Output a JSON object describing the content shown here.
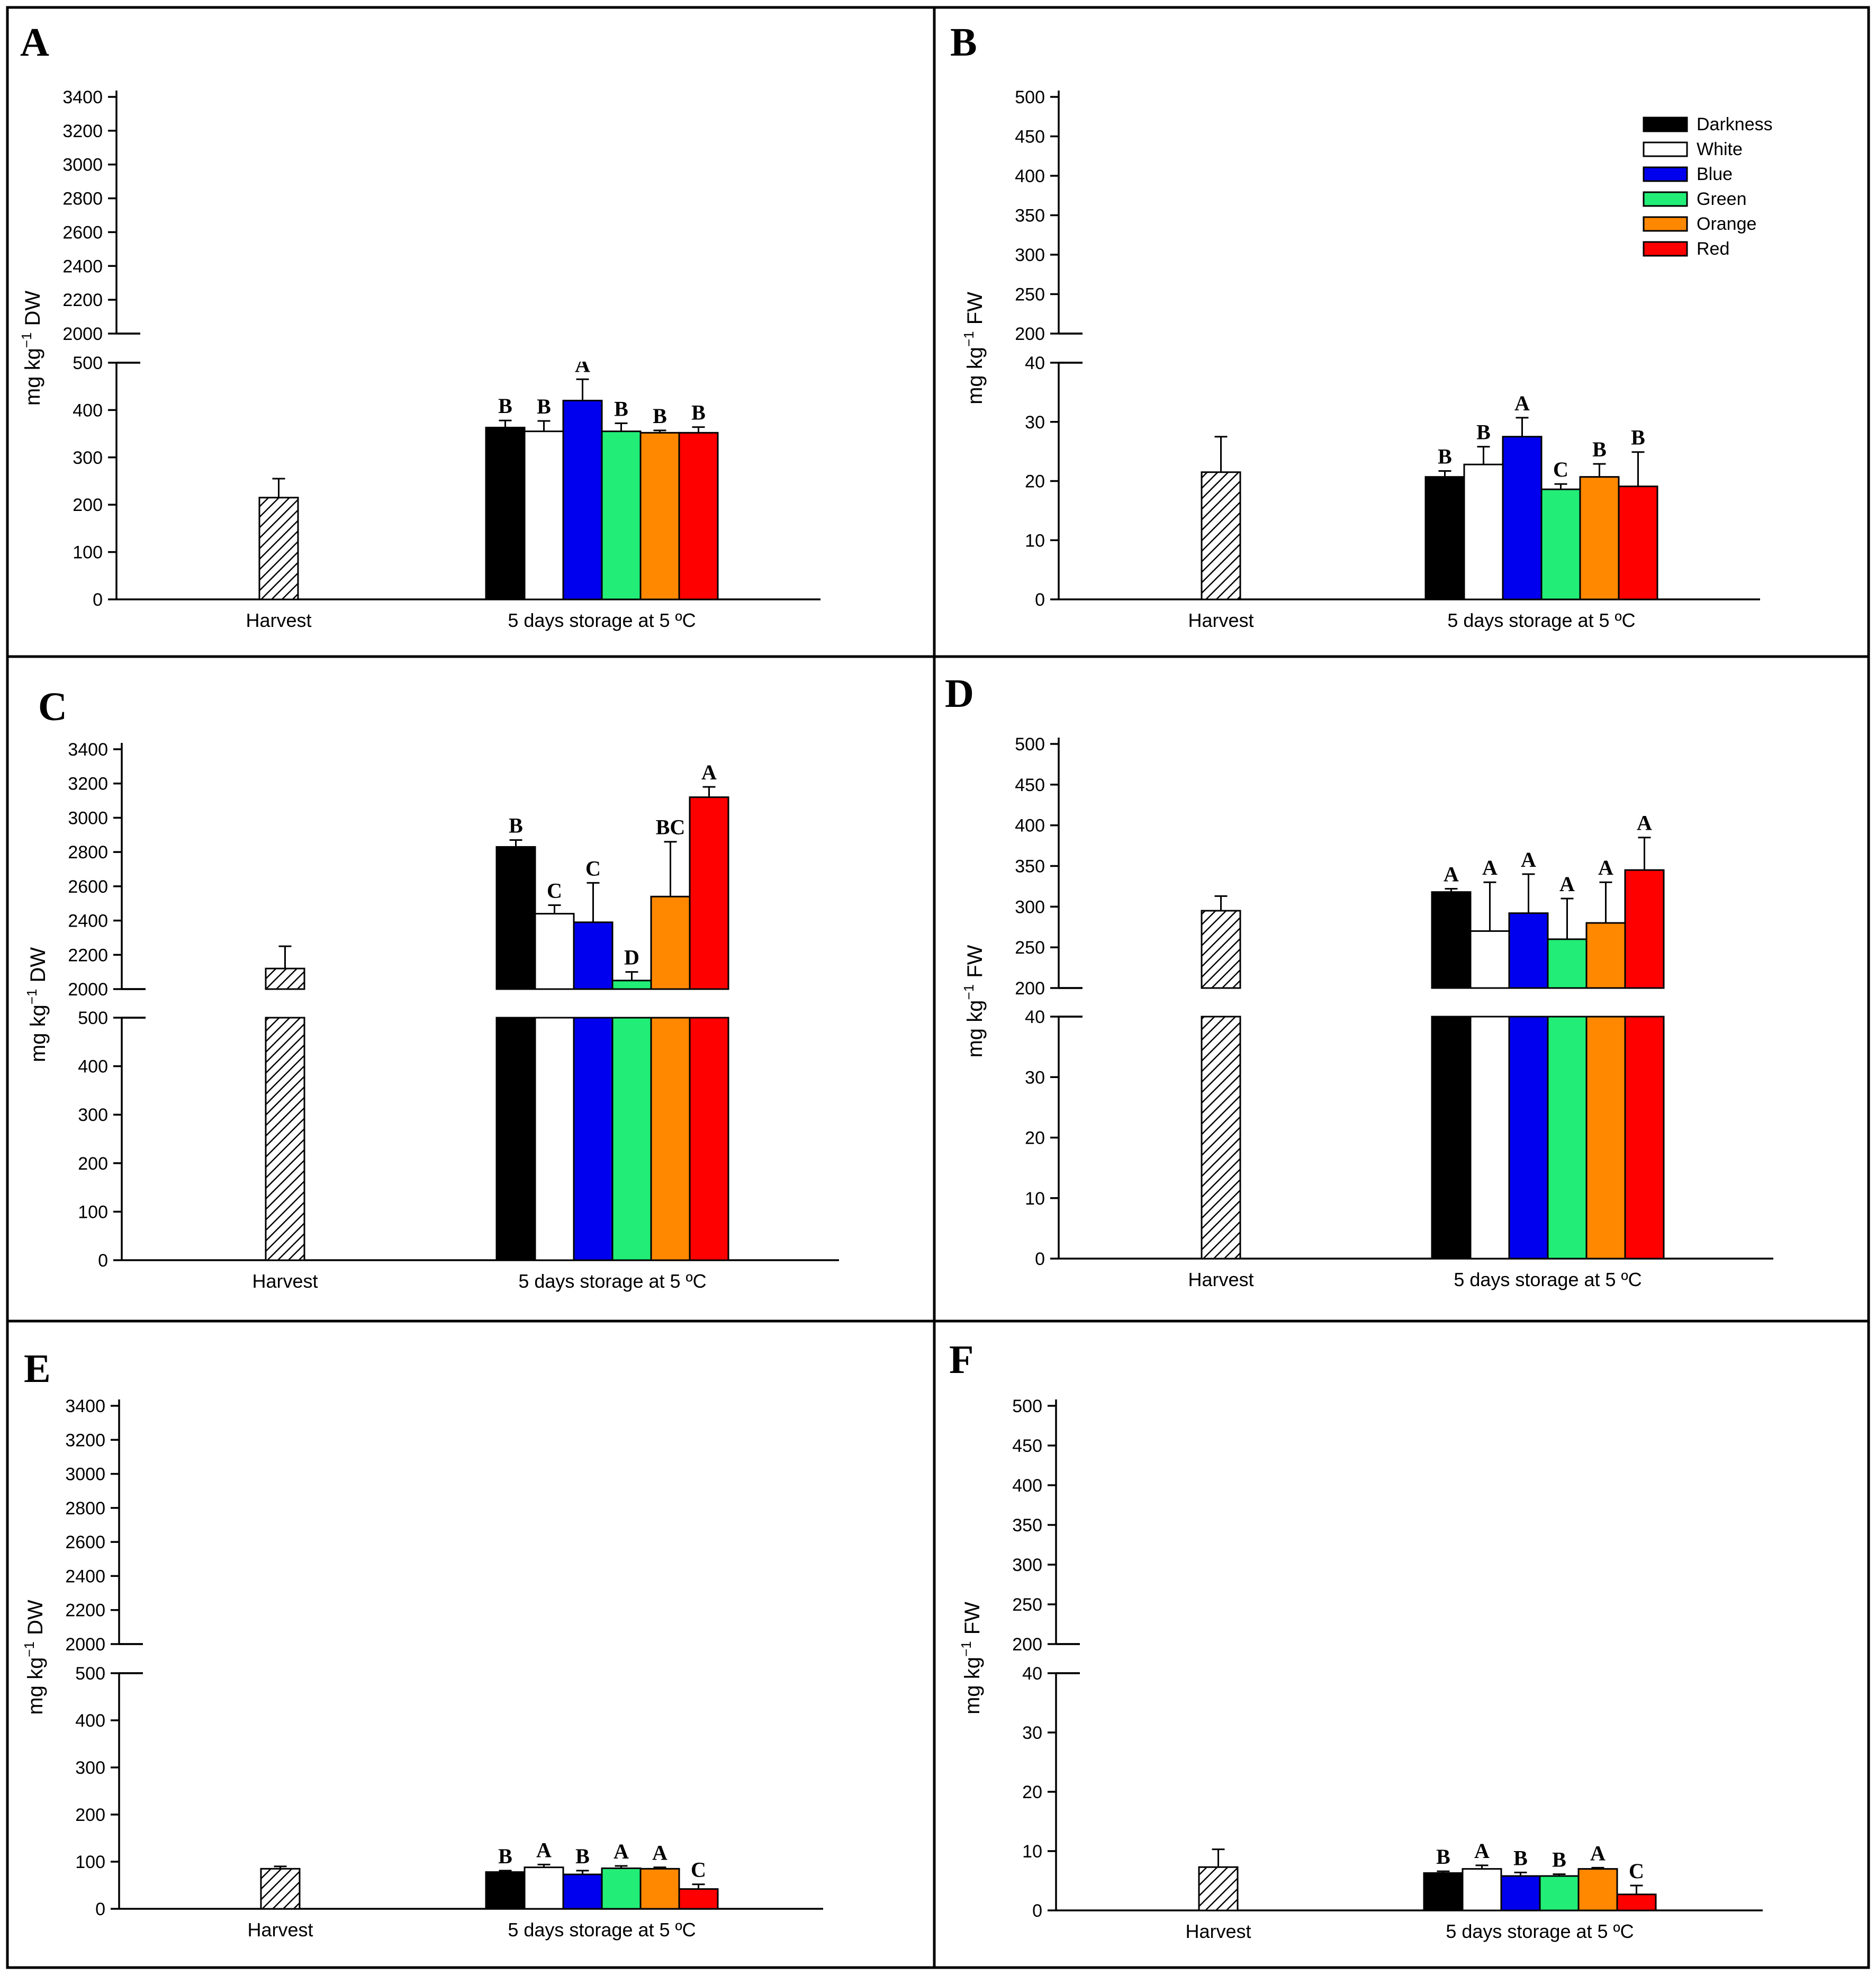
{
  "colors": {
    "Darkness": "#000000",
    "White": "#ffffff",
    "Blue": "#0000ee",
    "Green": "#22ee77",
    "Orange": "#ff8800",
    "Red": "#ff0000",
    "Harvest": "hatched-gray"
  },
  "legend": {
    "entries": [
      "Darkness",
      "White",
      "Blue",
      "Green",
      "Orange",
      "Red"
    ]
  },
  "chart_data": [
    {
      "type": "bar",
      "panel": "A",
      "ylabel_main": "mg kg",
      "ylabel_sup": "−1",
      "ylabel_unit": "DW",
      "categories": [
        "Harvest",
        "5 days storage at 5 ºC"
      ],
      "y_axis": {
        "lower_range": [
          0,
          500
        ],
        "lower_ticks": [
          0,
          100,
          200,
          300,
          400,
          500
        ],
        "upper_range": [
          2000,
          3500
        ],
        "upper_ticks": [
          2000,
          2200,
          2400,
          2600,
          2800,
          3000,
          3200,
          3400
        ]
      },
      "harvest": {
        "value": 215,
        "error": 40
      },
      "series": [
        {
          "name": "Darkness",
          "value": 363,
          "error": 15,
          "letter": "B"
        },
        {
          "name": "White",
          "value": 355,
          "error": 22,
          "letter": "B"
        },
        {
          "name": "Blue",
          "value": 420,
          "error": 45,
          "letter": "A"
        },
        {
          "name": "Green",
          "value": 355,
          "error": 17,
          "letter": "B"
        },
        {
          "name": "Orange",
          "value": 352,
          "error": 5,
          "letter": "B"
        },
        {
          "name": "Red",
          "value": 352,
          "error": 12,
          "letter": "B"
        }
      ]
    },
    {
      "type": "bar",
      "panel": "B",
      "ylabel_main": "mg kg",
      "ylabel_sup": "−1",
      "ylabel_unit": "FW",
      "categories": [
        "Harvest",
        "5 days storage at 5 ºC"
      ],
      "y_axis": {
        "lower_range": [
          0,
          40
        ],
        "lower_ticks": [
          0,
          10,
          20,
          30,
          40
        ],
        "upper_range": [
          200,
          500
        ],
        "upper_ticks": [
          200,
          250,
          300,
          350,
          400,
          450,
          500
        ]
      },
      "harvest": {
        "value": 21.5,
        "error": 6
      },
      "series": [
        {
          "name": "Darkness",
          "value": 20.7,
          "error": 1,
          "letter": "B"
        },
        {
          "name": "White",
          "value": 22.8,
          "error": 3,
          "letter": "B"
        },
        {
          "name": "Blue",
          "value": 27.5,
          "error": 3.2,
          "letter": "A"
        },
        {
          "name": "Green",
          "value": 18.6,
          "error": 0.9,
          "letter": "C"
        },
        {
          "name": "Orange",
          "value": 20.7,
          "error": 2.2,
          "letter": "B"
        },
        {
          "name": "Red",
          "value": 19.1,
          "error": 5.8,
          "letter": "B"
        }
      ]
    },
    {
      "type": "bar",
      "panel": "C",
      "ylabel_main": "mg kg",
      "ylabel_sup": "−1",
      "ylabel_unit": "DW",
      "categories": [
        "Harvest",
        "5 days storage at 5 ºC"
      ],
      "y_axis": {
        "lower_range": [
          0,
          500
        ],
        "lower_ticks": [
          0,
          100,
          200,
          300,
          400,
          500
        ],
        "upper_range": [
          2000,
          3500
        ],
        "upper_ticks": [
          2000,
          2200,
          2400,
          2600,
          2800,
          3000,
          3200,
          3400
        ]
      },
      "harvest": {
        "value": 2120,
        "error": 130
      },
      "series": [
        {
          "name": "Darkness",
          "value": 2830,
          "error": 40,
          "letter": "B"
        },
        {
          "name": "White",
          "value": 2440,
          "error": 50,
          "letter": "C"
        },
        {
          "name": "Blue",
          "value": 2390,
          "error": 230,
          "letter": "C"
        },
        {
          "name": "Green",
          "value": 2050,
          "error": 50,
          "letter": "D"
        },
        {
          "name": "Orange",
          "value": 2540,
          "error": 320,
          "letter": "BC"
        },
        {
          "name": "Red",
          "value": 3120,
          "error": 60,
          "letter": "A"
        }
      ]
    },
    {
      "type": "bar",
      "panel": "D",
      "ylabel_main": "mg kg",
      "ylabel_sup": "−1",
      "ylabel_unit": "FW",
      "categories": [
        "Harvest",
        "5 days storage at 5 ºC"
      ],
      "y_axis": {
        "lower_range": [
          0,
          40
        ],
        "lower_ticks": [
          0,
          10,
          20,
          30,
          40
        ],
        "upper_range": [
          200,
          500
        ],
        "upper_ticks": [
          200,
          250,
          300,
          350,
          400,
          450,
          500
        ]
      },
      "harvest": {
        "value": 295,
        "error": 18
      },
      "series": [
        {
          "name": "Darkness",
          "value": 318,
          "error": 4,
          "letter": "A"
        },
        {
          "name": "White",
          "value": 270,
          "error": 60,
          "letter": "A"
        },
        {
          "name": "Blue",
          "value": 292,
          "error": 48,
          "letter": "A"
        },
        {
          "name": "Green",
          "value": 260,
          "error": 50,
          "letter": "A"
        },
        {
          "name": "Orange",
          "value": 280,
          "error": 50,
          "letter": "A"
        },
        {
          "name": "Red",
          "value": 345,
          "error": 40,
          "letter": "A"
        }
      ]
    },
    {
      "type": "bar",
      "panel": "E",
      "ylabel_main": "mg kg",
      "ylabel_sup": "−1",
      "ylabel_unit": "DW",
      "categories": [
        "Harvest",
        "5 days storage at 5 ºC"
      ],
      "y_axis": {
        "lower_range": [
          0,
          500
        ],
        "lower_ticks": [
          0,
          100,
          200,
          300,
          400,
          500
        ],
        "upper_range": [
          2000,
          3500
        ],
        "upper_ticks": [
          2000,
          2200,
          2400,
          2600,
          2800,
          3000,
          3200,
          3400
        ]
      },
      "harvest": {
        "value": 85,
        "error": 5
      },
      "series": [
        {
          "name": "Darkness",
          "value": 78,
          "error": 3,
          "letter": "B"
        },
        {
          "name": "White",
          "value": 88,
          "error": 6,
          "letter": "A"
        },
        {
          "name": "Blue",
          "value": 73,
          "error": 8,
          "letter": "B"
        },
        {
          "name": "Green",
          "value": 86,
          "error": 5,
          "letter": "A"
        },
        {
          "name": "Orange",
          "value": 85,
          "error": 3,
          "letter": "A"
        },
        {
          "name": "Red",
          "value": 42,
          "error": 10,
          "letter": "C"
        }
      ]
    },
    {
      "type": "bar",
      "panel": "F",
      "ylabel_main": "mg kg",
      "ylabel_sup": "−1",
      "ylabel_unit": "FW",
      "categories": [
        "Harvest",
        "5 days storage at 5 ºC"
      ],
      "y_axis": {
        "lower_range": [
          0,
          40
        ],
        "lower_ticks": [
          0,
          10,
          20,
          30,
          40
        ],
        "upper_range": [
          200,
          500
        ],
        "upper_ticks": [
          200,
          250,
          300,
          350,
          400,
          450,
          500
        ]
      },
      "harvest": {
        "value": 7.3,
        "error": 3
      },
      "series": [
        {
          "name": "Darkness",
          "value": 6.3,
          "error": 0.3,
          "letter": "B"
        },
        {
          "name": "White",
          "value": 7,
          "error": 0.6,
          "letter": "A"
        },
        {
          "name": "Blue",
          "value": 5.8,
          "error": 0.6,
          "letter": "B"
        },
        {
          "name": "Green",
          "value": 5.8,
          "error": 0.3,
          "letter": "B"
        },
        {
          "name": "Orange",
          "value": 7,
          "error": 0.2,
          "letter": "A"
        },
        {
          "name": "Red",
          "value": 2.7,
          "error": 1.5,
          "letter": "C"
        }
      ]
    }
  ]
}
